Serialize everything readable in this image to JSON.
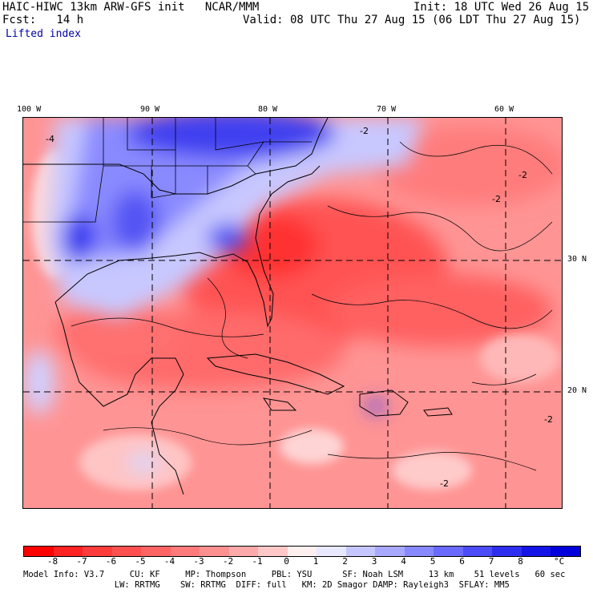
{
  "header": {
    "line1_left": "HAIC-HIWC 13km ARW-GFS init   NCAR/MMM",
    "line1_right": "Init: 18 UTC Wed 26 Aug 15",
    "line2_left": "Fcst:   14 h",
    "line2_right": "Valid: 08 UTC Thu 27 Aug 15 (06 LDT Thu 27 Aug 15)",
    "field_name": "Lifted index"
  },
  "map": {
    "lon_labels": [
      "100 W",
      "90 W",
      "80 W",
      "70 W",
      "60 W"
    ],
    "lat_labels": [
      "30 N",
      "20 N"
    ],
    "contour_labels": [
      "-4",
      "-2",
      "-2",
      "-2",
      "-2",
      "-2"
    ]
  },
  "colorbar": {
    "colors": [
      "#ff0000",
      "#ff2323",
      "#ff3c3c",
      "#ff5050",
      "#ff6464",
      "#ff7a7a",
      "#ff9090",
      "#ffaaaa",
      "#ffc8c8",
      "#fff0f0",
      "#e8e8ff",
      "#c6c6ff",
      "#a8a8ff",
      "#8888ff",
      "#6a6aff",
      "#4c4cf8",
      "#2e2ef0",
      "#1414e6",
      "#0000dc"
    ],
    "tick_labels": [
      "-8",
      "-7",
      "-6",
      "-5",
      "-4",
      "-3",
      "-2",
      "-1",
      "0",
      "1",
      "2",
      "3",
      "4",
      "5",
      "6",
      "7",
      "8"
    ],
    "unit": "°C"
  },
  "model_info": {
    "line1": "Model Info: V3.7     CU: KF     MP: Thompson     PBL: YSU      SF: Noah LSM     13 km    51 levels   60 sec",
    "line2": "                  LW: RRTMG    SW: RRTMG  DIFF: full   KM: 2D Smagor DAMP: Rayleigh3  SFLAY: MM5"
  }
}
